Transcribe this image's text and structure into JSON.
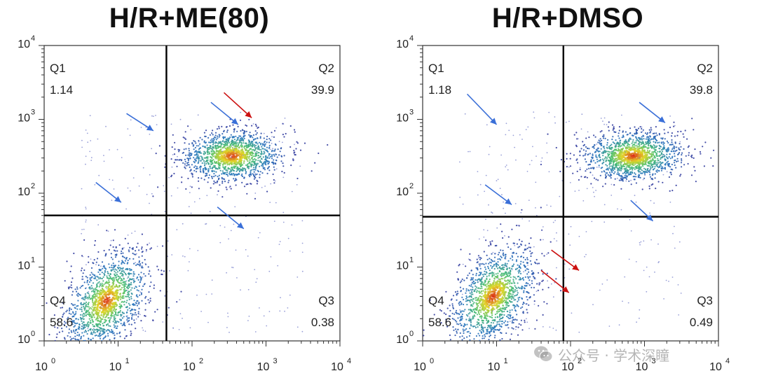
{
  "chart_data": [
    {
      "type": "scatter",
      "title": "H/R+ME(80)",
      "xlabel": "",
      "ylabel": "",
      "xscale": "log",
      "yscale": "log",
      "xlim": [
        1,
        10000
      ],
      "ylim": [
        1,
        10000
      ],
      "xticks": [
        "10",
        "10",
        "10",
        "10",
        "10"
      ],
      "xtick_exponents": [
        "0",
        "1",
        "2",
        "3",
        "4"
      ],
      "yticks": [
        "10",
        "10",
        "10",
        "10",
        "10"
      ],
      "ytick_exponents": [
        "0",
        "1",
        "2",
        "3",
        "4"
      ],
      "gate": {
        "x": 45,
        "y": 50
      },
      "quadrants": [
        {
          "name": "Q1",
          "value": "1.14"
        },
        {
          "name": "Q2",
          "value": "39.9"
        },
        {
          "name": "Q3",
          "value": "0.38"
        },
        {
          "name": "Q4",
          "value": "58.6"
        }
      ],
      "populations": [
        {
          "center": [
            7,
            3.5
          ],
          "spread": [
            0.28,
            0.3
          ],
          "tilt": 0.55
        },
        {
          "center": [
            350,
            320
          ],
          "spread": [
            0.34,
            0.17
          ],
          "tilt": 0.05
        }
      ],
      "arrows": [
        {
          "color": "#3a6fd8",
          "from": [
            13,
            1200
          ],
          "to": [
            30,
            700
          ]
        },
        {
          "color": "#3a6fd8",
          "from": [
            5,
            140
          ],
          "to": [
            11,
            75
          ]
        },
        {
          "color": "#3a6fd8",
          "from": [
            180,
            1700
          ],
          "to": [
            420,
            850
          ]
        },
        {
          "color": "#cc1111",
          "from": [
            270,
            2300
          ],
          "to": [
            640,
            1050
          ]
        },
        {
          "color": "#3a6fd8",
          "from": [
            220,
            65
          ],
          "to": [
            500,
            33
          ]
        }
      ],
      "grid": false
    },
    {
      "type": "scatter",
      "title": "H/R+DMSO",
      "xlabel": "",
      "ylabel": "",
      "xscale": "log",
      "yscale": "log",
      "xlim": [
        1,
        10000
      ],
      "ylim": [
        1,
        10000
      ],
      "xticks": [
        "10",
        "10",
        "10",
        "10",
        "10"
      ],
      "xtick_exponents": [
        "0",
        "1",
        "2",
        "3",
        "4"
      ],
      "yticks": [
        "10",
        "10",
        "10",
        "10",
        "10"
      ],
      "ytick_exponents": [
        "0",
        "1",
        "2",
        "3",
        "4"
      ],
      "gate": {
        "x": 80,
        "y": 48
      },
      "quadrants": [
        {
          "name": "Q1",
          "value": "1.18"
        },
        {
          "name": "Q2",
          "value": "39.8"
        },
        {
          "name": "Q3",
          "value": "0.49"
        },
        {
          "name": "Q4",
          "value": "58.6"
        }
      ],
      "populations": [
        {
          "center": [
            9,
            4
          ],
          "spread": [
            0.28,
            0.3
          ],
          "tilt": 0.55
        },
        {
          "center": [
            700,
            320
          ],
          "spread": [
            0.34,
            0.17
          ],
          "tilt": 0.05
        }
      ],
      "arrows": [
        {
          "color": "#3a6fd8",
          "from": [
            4,
            2200
          ],
          "to": [
            10,
            850
          ]
        },
        {
          "color": "#3a6fd8",
          "from": [
            7,
            130
          ],
          "to": [
            16,
            70
          ]
        },
        {
          "color": "#3a6fd8",
          "from": [
            850,
            1700
          ],
          "to": [
            1900,
            900
          ]
        },
        {
          "color": "#3a6fd8",
          "from": [
            650,
            80
          ],
          "to": [
            1300,
            42
          ]
        },
        {
          "color": "#cc1111",
          "from": [
            55,
            17
          ],
          "to": [
            130,
            9
          ]
        },
        {
          "color": "#cc1111",
          "from": [
            40,
            9
          ],
          "to": [
            95,
            4.5
          ]
        }
      ],
      "grid": false
    }
  ],
  "watermark": {
    "icon": "wechat-icon",
    "text": "公众号 · 学术深瞳"
  }
}
